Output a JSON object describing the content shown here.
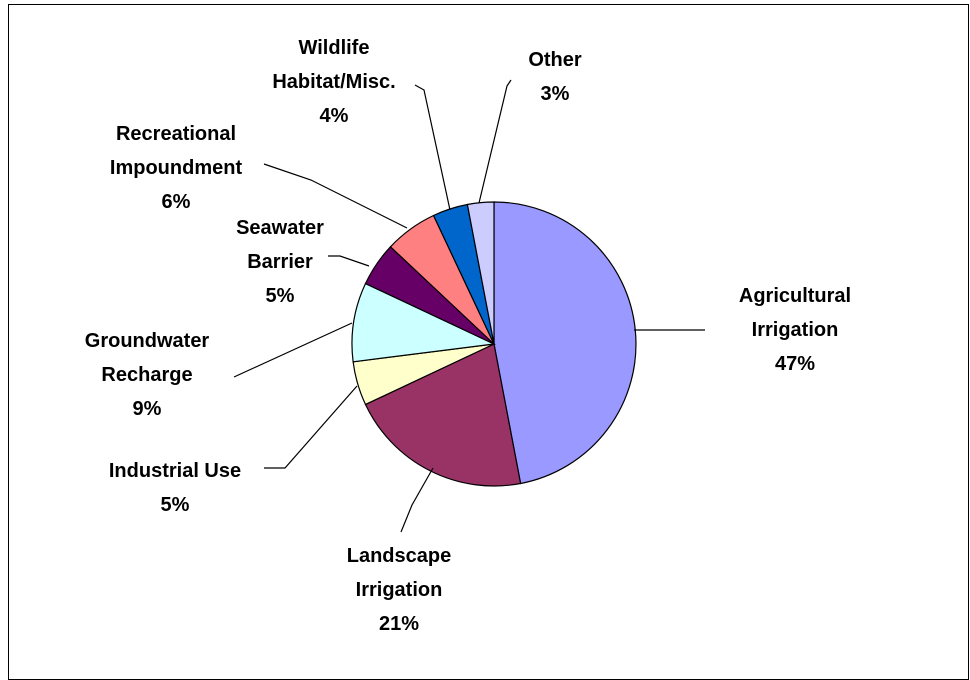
{
  "chart_data": {
    "type": "pie",
    "title": "",
    "slices": [
      {
        "name": "agricultural-irrigation",
        "lines": [
          "Agricultural",
          "Irrigation",
          "47%"
        ],
        "value": 47,
        "color": "#9999ff"
      },
      {
        "name": "landscape-irrigation",
        "lines": [
          "Landscape",
          "Irrigation",
          "21%"
        ],
        "value": 21,
        "color": "#993366"
      },
      {
        "name": "industrial-use",
        "lines": [
          "Industrial Use",
          "5%"
        ],
        "value": 5,
        "color": "#ffffcc"
      },
      {
        "name": "groundwater-recharge",
        "lines": [
          "Groundwater",
          "Recharge",
          "9%"
        ],
        "value": 9,
        "color": "#ccffff"
      },
      {
        "name": "seawater-barrier",
        "lines": [
          "Seawater",
          "Barrier",
          "5%"
        ],
        "value": 5,
        "color": "#660066"
      },
      {
        "name": "recreational-impoundment",
        "lines": [
          "Recreational",
          "Impoundment",
          "6%"
        ],
        "value": 6,
        "color": "#ff8080"
      },
      {
        "name": "wildlife-habitat",
        "lines": [
          "Wildlife",
          "Habitat/Misc.",
          "4%"
        ],
        "value": 4,
        "color": "#0066cc"
      },
      {
        "name": "other",
        "lines": [
          "Other",
          "3%"
        ],
        "value": 3,
        "color": "#ccccff"
      }
    ]
  }
}
